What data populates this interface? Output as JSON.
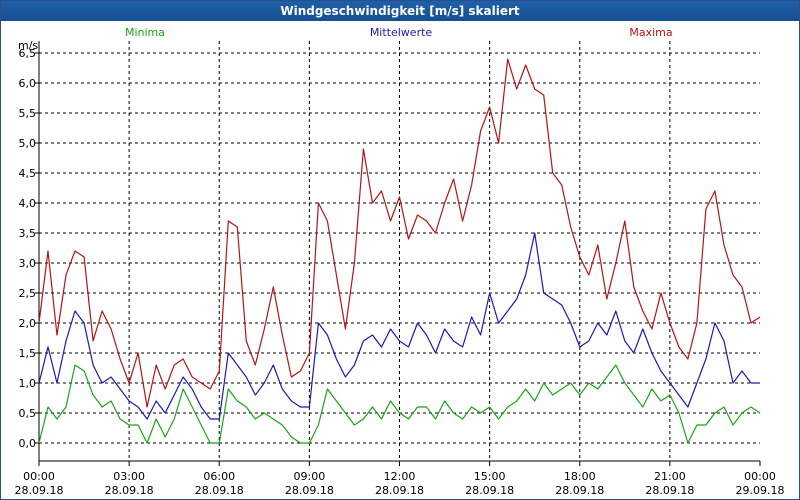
{
  "chart_data": {
    "type": "line",
    "title": "Windgeschwindigkeit [m/s] skaliert",
    "ylabel": "m/s",
    "xlabel": "",
    "ylim": [
      -0.3,
      6.7
    ],
    "y_ticks": [
      "0,0",
      "0,5",
      "1,0",
      "1,5",
      "2,0",
      "2,5",
      "3,0",
      "3,5",
      "4,0",
      "4,5",
      "5,0",
      "5,5",
      "6,0",
      "6,5"
    ],
    "y_tick_values": [
      0,
      0.5,
      1,
      1.5,
      2,
      2.5,
      3,
      3.5,
      4,
      4.5,
      5,
      5.5,
      6,
      6.5
    ],
    "x_ticks": [
      {
        "time": "00:00",
        "date": "28.09.18"
      },
      {
        "time": "03:00",
        "date": "28.09.18"
      },
      {
        "time": "06:00",
        "date": "28.09.18"
      },
      {
        "time": "09:00",
        "date": "28.09.18"
      },
      {
        "time": "12:00",
        "date": "28.09.18"
      },
      {
        "time": "15:00",
        "date": "28.09.18"
      },
      {
        "time": "18:00",
        "date": "28.09.18"
      },
      {
        "time": "21:00",
        "date": "28.09.18"
      },
      {
        "time": "00:00",
        "date": "29.09.18"
      }
    ],
    "x_hours": [
      0,
      3,
      6,
      9,
      12,
      15,
      18,
      21,
      24
    ],
    "grid": true,
    "legend_position": "top",
    "series": [
      {
        "name": "Minima",
        "color": "#1aa51a",
        "hours": [
          0,
          0.3,
          0.6,
          0.9,
          1.2,
          1.5,
          1.8,
          2.1,
          2.4,
          2.7,
          3.0,
          3.3,
          3.6,
          3.9,
          4.2,
          4.5,
          4.8,
          5.1,
          5.4,
          5.7,
          6.0,
          6.3,
          6.6,
          6.9,
          7.2,
          7.5,
          7.8,
          8.1,
          8.4,
          8.7,
          9.0,
          9.3,
          9.6,
          9.9,
          10.2,
          10.5,
          10.8,
          11.1,
          11.4,
          11.7,
          12.0,
          12.3,
          12.6,
          12.9,
          13.2,
          13.5,
          13.8,
          14.1,
          14.4,
          14.7,
          15.0,
          15.3,
          15.6,
          15.9,
          16.2,
          16.5,
          16.8,
          17.1,
          17.4,
          17.7,
          18.0,
          18.3,
          18.6,
          18.9,
          19.2,
          19.5,
          19.8,
          20.1,
          20.4,
          20.7,
          21.0,
          21.3,
          21.6,
          21.9,
          22.2,
          22.5,
          22.8,
          23.1,
          23.4,
          23.7,
          24.0
        ],
        "values": [
          0,
          0.6,
          0.4,
          0.6,
          1.3,
          1.2,
          0.8,
          0.6,
          0.7,
          0.4,
          0.3,
          0.3,
          0,
          0.4,
          0.1,
          0.4,
          0.9,
          0.6,
          0.3,
          0,
          0,
          0.9,
          0.7,
          0.6,
          0.4,
          0.5,
          0.4,
          0.3,
          0.1,
          0,
          0,
          0.3,
          0.9,
          0.7,
          0.5,
          0.3,
          0.4,
          0.6,
          0.4,
          0.7,
          0.5,
          0.4,
          0.6,
          0.6,
          0.4,
          0.7,
          0.5,
          0.4,
          0.6,
          0.5,
          0.6,
          0.4,
          0.6,
          0.7,
          0.9,
          0.7,
          1.0,
          0.8,
          0.9,
          1.0,
          0.8,
          1.0,
          0.9,
          1.1,
          1.3,
          1.0,
          0.8,
          0.6,
          0.9,
          0.7,
          0.8,
          0.5,
          0,
          0.3,
          0.3,
          0.5,
          0.6,
          0.3,
          0.5,
          0.6,
          0.5
        ]
      },
      {
        "name": "Mittelwerte",
        "color": "#1a1ab4",
        "hours": [
          0,
          0.3,
          0.6,
          0.9,
          1.2,
          1.5,
          1.8,
          2.1,
          2.4,
          2.7,
          3.0,
          3.3,
          3.6,
          3.9,
          4.2,
          4.5,
          4.8,
          5.1,
          5.4,
          5.7,
          6.0,
          6.3,
          6.6,
          6.9,
          7.2,
          7.5,
          7.8,
          8.1,
          8.4,
          8.7,
          9.0,
          9.3,
          9.6,
          9.9,
          10.2,
          10.5,
          10.8,
          11.1,
          11.4,
          11.7,
          12.0,
          12.3,
          12.6,
          12.9,
          13.2,
          13.5,
          13.8,
          14.1,
          14.4,
          14.7,
          15.0,
          15.3,
          15.6,
          15.9,
          16.2,
          16.5,
          16.8,
          17.1,
          17.4,
          17.7,
          18.0,
          18.3,
          18.6,
          18.9,
          19.2,
          19.5,
          19.8,
          20.1,
          20.4,
          20.7,
          21.0,
          21.3,
          21.6,
          21.9,
          22.2,
          22.5,
          22.8,
          23.1,
          23.4,
          23.7,
          24.0
        ],
        "values": [
          1.0,
          1.6,
          1.0,
          1.7,
          2.2,
          2.0,
          1.3,
          1.0,
          1.1,
          0.9,
          0.7,
          0.6,
          0.4,
          0.7,
          0.5,
          0.8,
          1.1,
          0.9,
          0.6,
          0.4,
          0.4,
          1.5,
          1.3,
          1.1,
          0.8,
          1.0,
          1.3,
          0.9,
          0.7,
          0.6,
          0.6,
          2.0,
          1.8,
          1.4,
          1.1,
          1.3,
          1.7,
          1.8,
          1.6,
          1.9,
          1.7,
          1.6,
          2.0,
          1.8,
          1.5,
          1.9,
          1.7,
          1.6,
          2.1,
          1.8,
          2.5,
          2.0,
          2.2,
          2.4,
          2.8,
          3.5,
          2.5,
          2.4,
          2.3,
          2.0,
          1.6,
          1.7,
          2.0,
          1.8,
          2.2,
          1.7,
          1.5,
          1.9,
          1.5,
          1.2,
          1.0,
          0.8,
          0.6,
          1.0,
          1.4,
          2.0,
          1.7,
          1.0,
          1.2,
          1.0,
          1.0
        ]
      },
      {
        "name": "Maxima",
        "color": "#b41414",
        "hours": [
          0,
          0.3,
          0.6,
          0.9,
          1.2,
          1.5,
          1.8,
          2.1,
          2.4,
          2.7,
          3.0,
          3.3,
          3.6,
          3.9,
          4.2,
          4.5,
          4.8,
          5.1,
          5.4,
          5.7,
          6.0,
          6.3,
          6.6,
          6.9,
          7.2,
          7.5,
          7.8,
          8.1,
          8.4,
          8.7,
          9.0,
          9.3,
          9.6,
          9.9,
          10.2,
          10.5,
          10.8,
          11.1,
          11.4,
          11.7,
          12.0,
          12.3,
          12.6,
          12.9,
          13.2,
          13.5,
          13.8,
          14.1,
          14.4,
          14.7,
          15.0,
          15.3,
          15.6,
          15.9,
          16.2,
          16.5,
          16.8,
          17.1,
          17.4,
          17.7,
          18.0,
          18.3,
          18.6,
          18.9,
          19.2,
          19.5,
          19.8,
          20.1,
          20.4,
          20.7,
          21.0,
          21.3,
          21.6,
          21.9,
          22.2,
          22.5,
          22.8,
          23.1,
          23.4,
          23.7,
          24.0
        ],
        "values": [
          2.0,
          3.2,
          1.8,
          2.8,
          3.2,
          3.1,
          1.7,
          2.2,
          1.9,
          1.4,
          1.0,
          1.5,
          0.6,
          1.3,
          0.9,
          1.3,
          1.4,
          1.1,
          1.0,
          0.9,
          1.2,
          3.7,
          3.6,
          1.7,
          1.3,
          1.9,
          2.6,
          1.8,
          1.1,
          1.2,
          1.5,
          4.0,
          3.7,
          2.8,
          1.9,
          3.0,
          4.9,
          4.0,
          4.2,
          3.7,
          4.1,
          3.4,
          3.8,
          3.7,
          3.5,
          4.0,
          4.4,
          3.7,
          4.3,
          5.2,
          5.6,
          5.0,
          6.4,
          5.9,
          6.3,
          5.9,
          5.8,
          4.5,
          4.3,
          3.6,
          3.1,
          2.8,
          3.3,
          2.4,
          3.0,
          3.7,
          2.6,
          2.2,
          1.9,
          2.5,
          2.0,
          1.6,
          1.4,
          2.0,
          3.9,
          4.2,
          3.3,
          2.8,
          2.6,
          2.0,
          2.1
        ]
      }
    ]
  }
}
